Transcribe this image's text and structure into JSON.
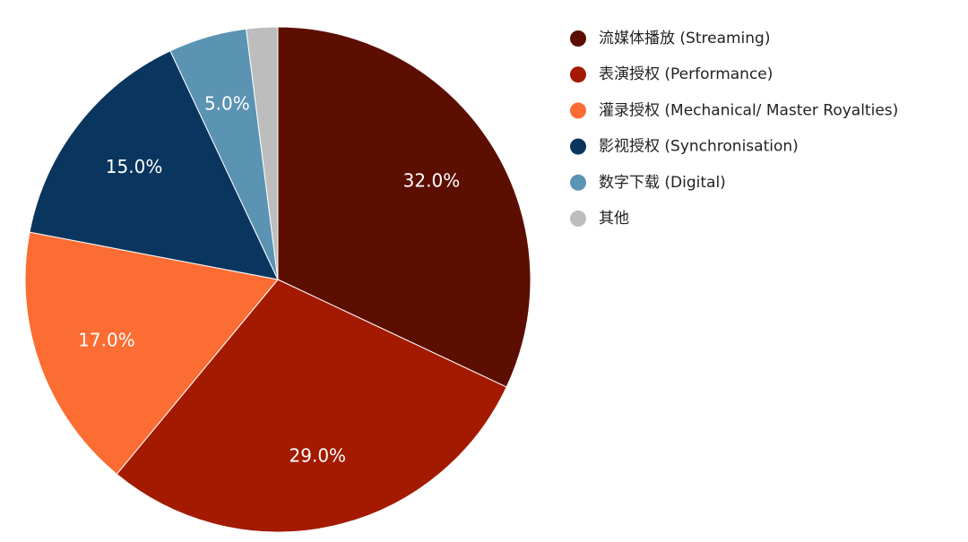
{
  "chart_data": {
    "type": "pie",
    "categories": [
      "流媒体播放 (Streaming)",
      "表演授权 (Performance)",
      "灌录授权 (Mechanical/ Master Royalties)",
      "影视授权 (Synchronisation)",
      "数字下载 (Digital)",
      "其他"
    ],
    "values": [
      32,
      29,
      17,
      15,
      5,
      2
    ],
    "value_labels": [
      "32.0%",
      "29.0%",
      "17.0%",
      "15.0%",
      "5.0%",
      null
    ],
    "colors": [
      "#5c0f00",
      "#a31a00",
      "#fb6d33",
      "#0a355e",
      "#5b93b3",
      "#bdbdbd"
    ],
    "legend": "right"
  }
}
